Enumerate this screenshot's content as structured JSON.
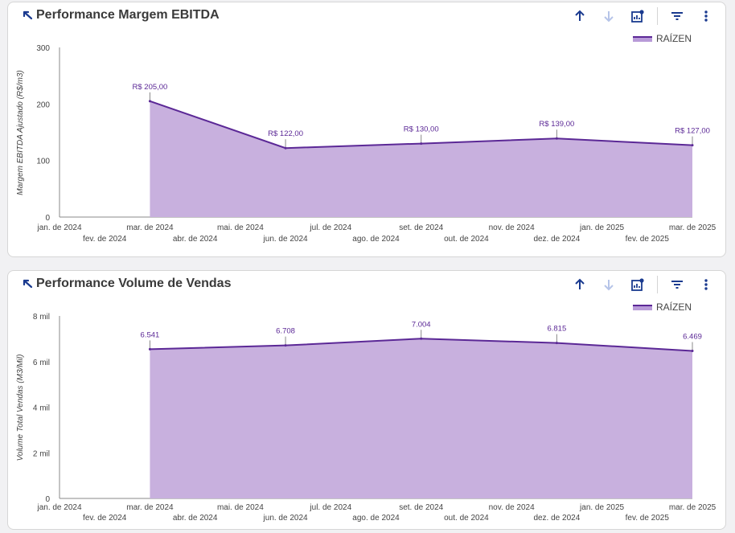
{
  "colors": {
    "area": "#c8b0de",
    "line": "#5b2896",
    "axis": "#888888",
    "arrow_up": "#1a3a8f",
    "arrow_down": "#b6c4e8"
  },
  "icons": [
    "drill-up-icon",
    "arrow-up-icon",
    "arrow-down-icon",
    "chart-insights-icon",
    "filter-icon",
    "more-vert-icon"
  ],
  "x_labels_top": [
    "jan. de 2024",
    "mar. de 2024",
    "mai. de 2024",
    "jul. de 2024",
    "set. de 2024",
    "nov. de 2024",
    "jan. de 2025",
    "mar. de 2025"
  ],
  "x_labels_bottom": [
    "fev. de 2024",
    "abr. de 2024",
    "jun. de 2024",
    "ago. de 2024",
    "out. de 2024",
    "dez. de 2024",
    "fev. de 2025"
  ],
  "cards": [
    {
      "title": "Performance Margem EBITDA",
      "legend": "RAÍZEN",
      "chart_data": {
        "type": "area",
        "title": "Performance Margem EBITDA",
        "ylabel": "Margem EBITDA Ajustado (R$/m3)",
        "xlabel": "",
        "ylim": [
          0,
          300
        ],
        "yticks": [
          0,
          100,
          200,
          300
        ],
        "ytick_labels": [
          "0",
          "100",
          "200",
          "300"
        ],
        "x": [
          "mar. de 2024",
          "jun. de 2024",
          "set. de 2024",
          "dez. de 2024",
          "mar. de 2025"
        ],
        "series": [
          {
            "name": "RAÍZEN",
            "values": [
              205,
              122,
              130,
              139,
              127
            ],
            "labels": [
              "R$ 205,00",
              "R$ 122,00",
              "R$ 130,00",
              "R$ 139,00",
              "R$ 127,00"
            ]
          }
        ],
        "legend_position": "top-right",
        "grid": false
      }
    },
    {
      "title": "Performance Volume de Vendas",
      "legend": "RAÍZEN",
      "chart_data": {
        "type": "area",
        "title": "Performance Volume de Vendas",
        "ylabel": "Volume Total Vendas (M3/Mil)",
        "xlabel": "",
        "ylim": [
          0,
          8000
        ],
        "yticks": [
          0,
          2000,
          4000,
          6000,
          8000
        ],
        "ytick_labels": [
          "0",
          "2 mil",
          "4 mil",
          "6 mil",
          "8 mil"
        ],
        "x": [
          "mar. de 2024",
          "jun. de 2024",
          "set. de 2024",
          "dez. de 2024",
          "mar. de 2025"
        ],
        "series": [
          {
            "name": "RAÍZEN",
            "values": [
              6541,
              6708,
              7004,
              6815,
              6469
            ],
            "labels": [
              "6.541",
              "6.708",
              "7.004",
              "6.815",
              "6.469"
            ]
          }
        ],
        "legend_position": "top-right",
        "grid": false
      }
    }
  ]
}
